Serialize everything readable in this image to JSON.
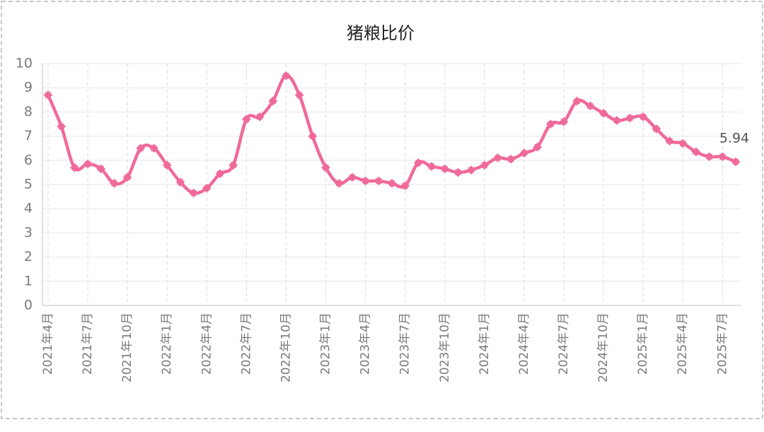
{
  "chart_data": {
    "type": "line",
    "title": "猪粮比价",
    "categories": [
      "2021年4月",
      null,
      null,
      "2021年7月",
      null,
      null,
      "2021年10月",
      null,
      null,
      "2022年1月",
      null,
      null,
      "2022年4月",
      null,
      null,
      "2022年7月",
      null,
      null,
      "2022年10月",
      null,
      null,
      "2023年1月",
      null,
      null,
      "2023年4月",
      null,
      null,
      "2023年7月",
      null,
      null,
      "2023年10月",
      null,
      null,
      "2024年1月",
      null,
      null,
      "2024年4月",
      null,
      null,
      "2024年7月",
      null,
      null,
      "2024年10月",
      null,
      null,
      "2025年1月",
      null,
      null,
      "2025年4月",
      null,
      null,
      "2025年7月",
      null
    ],
    "values": [
      8.7,
      7.4,
      5.7,
      5.85,
      5.65,
      5.05,
      5.3,
      6.5,
      6.5,
      5.8,
      5.1,
      4.65,
      4.85,
      5.45,
      5.8,
      7.7,
      7.8,
      8.45,
      9.5,
      8.7,
      7.0,
      5.7,
      5.05,
      5.3,
      5.15,
      5.15,
      5.05,
      4.95,
      5.9,
      5.75,
      5.65,
      5.5,
      5.6,
      5.8,
      6.1,
      6.05,
      6.3,
      6.55,
      7.5,
      7.6,
      8.45,
      8.25,
      7.95,
      7.65,
      7.75,
      7.8,
      7.3,
      6.8,
      6.7,
      6.35,
      6.15,
      6.15,
      5.94
    ],
    "color": "#ef6a9a",
    "ylim": [
      0,
      10
    ],
    "yticks": [
      0,
      1,
      2,
      3,
      4,
      5,
      6,
      7,
      8,
      9,
      10
    ],
    "grid": true,
    "label_last_point": true
  }
}
